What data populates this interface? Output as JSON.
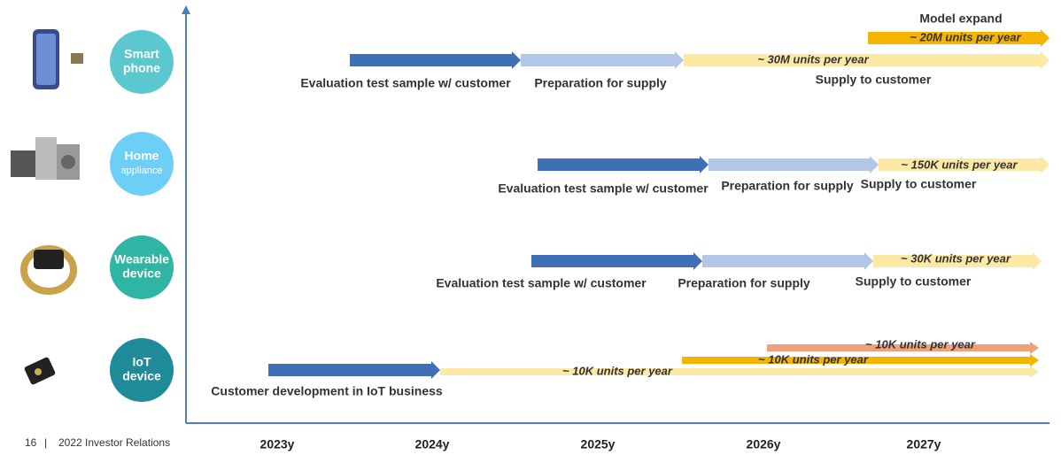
{
  "rows": [
    {
      "circle": [
        "Smart",
        "phone"
      ],
      "labels": [
        "Model expand",
        "~ 20M units per year",
        "~ 30M units per year",
        "Evaluation test sample w/ customer",
        "Preparation for supply",
        "Supply to customer"
      ]
    },
    {
      "circle": [
        "Home",
        "appliance"
      ],
      "labels": [
        "~ 150K units per year",
        "Evaluation test sample w/ customer",
        "Preparation for supply",
        "Supply to customer"
      ]
    },
    {
      "circle": [
        "Wearable",
        "device"
      ],
      "labels": [
        "~ 30K units per year",
        "Evaluation test sample w/ customer",
        "Preparation for supply",
        "Supply to customer"
      ]
    },
    {
      "circle": [
        "IoT",
        "device"
      ],
      "labels": [
        "~ 10K units per year",
        "~ 10K units per year",
        "~ 10K units per year",
        "Customer development in IoT business"
      ]
    }
  ],
  "years": [
    "2023y",
    "2024y",
    "2025y",
    "2026y",
    "2027y"
  ],
  "footer": {
    "page": "16",
    "separator": "|",
    "text": "2022 Investor Relations"
  }
}
